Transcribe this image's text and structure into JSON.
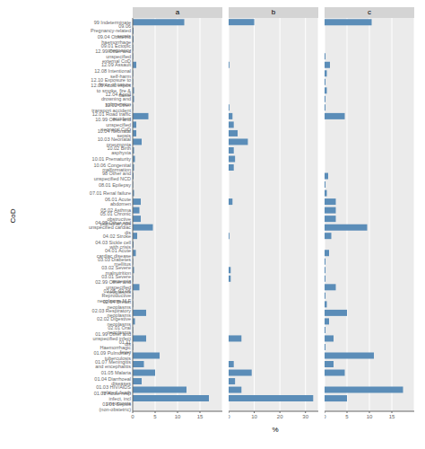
{
  "chart_data": [
    {
      "type": "bar",
      "title": "a",
      "orientation": "horizontal",
      "ylabel": "CoD",
      "color": "#5b8db8",
      "grid": true,
      "categories": [
        "99 Indeterminate",
        "09.06 Pregnancy-related sepsis",
        "09.04 Obstetric haemorrhage",
        "09.01 Ectopic pregnancy",
        "12.99 Other and unspecified external CoD",
        "12.09 Assault",
        "12.08 Intentional self-harm",
        "12.10 Exposure to force of nature",
        "12.05 Accid expos to smoke, fire & flame",
        "12.04 Accid drowning and submersion",
        "12.02 Other transport accident",
        "12.01 Road traffic accident",
        "10.99 Other and unspecified neonatal CoD",
        "10.04 Neonatal sepsis",
        "10.03 Neonatal pneumonia",
        "10.02 Birth asphyxia",
        "10.01 Prematurity",
        "10.06 Congenital malformation",
        "98 Other and unspecified NCD",
        "08.01 Epilepsy",
        "07.01 Renal failure",
        "06.01 Acute abdomen",
        "05.02 Asthma",
        "05.01 Chronic obstructive pulmonary dis",
        "04.99 Other and unspecified cardiac dis",
        "04.02 Stroke",
        "04.03 Sickle cell with crisis",
        "04.01 Acute cardiac disease",
        "03.03 Diabetes mellitus",
        "03.02 Severe malnutrition",
        "03.01 Severe anaemia",
        "02.99 Other and unspecified neoplasms",
        "02.05, 02.06 Reproductive neoplasms M,F",
        "02.04 Breast neoplasms",
        "02.03 Respiratory neoplasms",
        "02.02 Digestive neoplasms",
        "02.01 Oral neoplasms",
        "01.99 Other and unspecified infect dis",
        "01.11 Haemorrhagic fever",
        "01.09 Pulmonary tuberculosis",
        "01.07 Meningitis and encephalitis",
        "01.05 Malaria",
        "01.04 Diarrhoeal diseases",
        "01.03 HIV/AIDS related death",
        "01.02 Acute resp infect, incl pneumonia",
        "01.01 Sepsis (non-obstetric)"
      ],
      "values": [
        11.5,
        0.2,
        0.2,
        0.1,
        0.1,
        0.8,
        0.1,
        0.1,
        0.3,
        0.3,
        0.1,
        3.5,
        0.8,
        0.8,
        2.0,
        0.3,
        0.5,
        0.3,
        0.2,
        0.1,
        0.3,
        1.8,
        1.5,
        1.8,
        4.5,
        1.0,
        0.2,
        0.7,
        0.1,
        0.3,
        0.1,
        1.5,
        0.1,
        0.1,
        3.0,
        0.5,
        0.1,
        3.0,
        0.1,
        6.0,
        2.5,
        5.0,
        2.0,
        12.0,
        17.0,
        0.0
      ],
      "xlim": [
        0,
        20
      ],
      "xticks": [
        0,
        5,
        10,
        15
      ]
    },
    {
      "type": "bar",
      "title": "b",
      "orientation": "horizontal",
      "xlabel": "%",
      "color": "#5b8db8",
      "grid": true,
      "tick_labels": "x",
      "categories": [
        "99 Indeterminate",
        "09.06 Pregnancy-related sepsis",
        "09.04 Obstetric haemorrhage",
        "09.01 Ectopic pregnancy",
        "12.99 Other and unspecified external CoD",
        "12.09 Assault",
        "12.08 Intentional self-harm",
        "12.10 Exposure to force of nature",
        "12.05 Accid expos to smoke, fire & flame",
        "12.04 Accid drowning and submersion",
        "12.02 Other transport accident",
        "12.01 Road traffic accident",
        "10.99 Other and unspecified neonatal CoD",
        "10.04 Neonatal sepsis",
        "10.03 Neonatal pneumonia",
        "10.02 Birth asphyxia",
        "10.01 Prematurity",
        "10.06 Congenital malformation",
        "98 Other and unspecified NCD",
        "08.01 Epilepsy",
        "07.01 Renal failure",
        "06.01 Acute abdomen",
        "05.02 Asthma",
        "05.01 Chronic obstructive pulmonary dis",
        "04.99 Other and unspecified cardiac dis",
        "04.02 Stroke",
        "04.03 Sickle cell with crisis",
        "04.01 Acute cardiac disease",
        "03.03 Diabetes mellitus",
        "03.02 Severe malnutrition",
        "03.01 Severe anaemia",
        "02.99 Other and unspecified neoplasms",
        "02.05, 02.06 Reproductive neoplasms M,F",
        "02.04 Breast neoplasms",
        "02.03 Respiratory neoplasms",
        "02.02 Digestive neoplasms",
        "02.01 Oral neoplasms",
        "01.99 Other and unspecified infect dis",
        "01.11 Haemorrhagic fever",
        "01.09 Pulmonary tuberculosis",
        "01.07 Meningitis and encephalitis",
        "01.05 Malaria",
        "01.04 Diarrhoeal diseases",
        "01.03 HIV/AIDS related death",
        "01.02 Acute resp infect, incl pneumonia",
        "01.01 Sepsis (non-obstetric)"
      ],
      "values": [
        10.0,
        0.0,
        0.0,
        0.0,
        0.0,
        0.3,
        0.0,
        0.0,
        0.0,
        0.0,
        0.3,
        1.5,
        2.0,
        3.5,
        7.5,
        2.0,
        2.5,
        2.0,
        0.0,
        0.0,
        0.0,
        1.5,
        0.0,
        0.0,
        0.0,
        0.3,
        0.0,
        0.0,
        0.0,
        0.8,
        0.8,
        0.0,
        0.0,
        0.0,
        0.0,
        0.0,
        0.0,
        5.0,
        0.0,
        0.0,
        2.0,
        9.0,
        2.5,
        5.0,
        33.0,
        0.0
      ],
      "xlim": [
        0,
        35
      ],
      "xticks": [
        0,
        10,
        20,
        30
      ]
    },
    {
      "type": "bar",
      "title": "c",
      "orientation": "horizontal",
      "color": "#5b8db8",
      "grid": true,
      "tick_labels": "x",
      "categories": [
        "99 Indeterminate",
        "09.06 Pregnancy-related sepsis",
        "09.04 Obstetric haemorrhage",
        "09.01 Ectopic pregnancy",
        "12.99 Other and unspecified external CoD",
        "12.09 Assault",
        "12.08 Intentional self-harm",
        "12.10 Exposure to force of nature",
        "12.05 Accid expos to smoke, fire & flame",
        "12.04 Accid drowning and submersion",
        "12.02 Other transport accident",
        "12.01 Road traffic accident",
        "10.99 Other and unspecified neonatal CoD",
        "10.04 Neonatal sepsis",
        "10.03 Neonatal pneumonia",
        "10.02 Birth asphyxia",
        "10.01 Prematurity",
        "10.06 Congenital malformation",
        "98 Other and unspecified NCD",
        "08.01 Epilepsy",
        "07.01 Renal failure",
        "06.01 Acute abdomen",
        "05.02 Asthma",
        "05.01 Chronic obstructive pulmonary dis",
        "04.99 Other and unspecified cardiac dis",
        "04.02 Stroke",
        "04.03 Sickle cell with crisis",
        "04.01 Acute cardiac disease",
        "03.03 Diabetes mellitus",
        "03.02 Severe malnutrition",
        "03.01 Severe anaemia",
        "02.99 Other and unspecified neoplasms",
        "02.05, 02.06 Reproductive neoplasms M,F",
        "02.04 Breast neoplasms",
        "02.03 Respiratory neoplasms",
        "02.02 Digestive neoplasms",
        "02.01 Oral neoplasms",
        "01.99 Other and unspecified infect dis",
        "01.11 Haemorrhagic fever",
        "01.09 Pulmonary tuberculosis",
        "01.07 Meningitis and encephalitis",
        "01.05 Malaria",
        "01.04 Diarrhoeal diseases",
        "01.03 HIV/AIDS related death",
        "01.02 Acute resp infect, incl pneumonia",
        "01.01 Sepsis (non-obstetric)"
      ],
      "values": [
        10.5,
        0.0,
        0.0,
        0.0,
        0.2,
        1.2,
        0.5,
        0.2,
        0.5,
        0.2,
        0.2,
        4.5,
        0.0,
        0.0,
        0.0,
        0.0,
        0.0,
        0.0,
        0.8,
        0.2,
        0.5,
        2.5,
        2.5,
        2.5,
        9.5,
        1.5,
        0.0,
        1.0,
        0.2,
        0.2,
        0.2,
        2.5,
        0.2,
        0.5,
        5.0,
        1.0,
        0.2,
        2.0,
        0.2,
        11.0,
        2.0,
        4.5,
        0.0,
        17.5,
        5.0,
        0.0
      ],
      "xlim": [
        0,
        20
      ],
      "xticks": [
        0,
        5,
        10,
        15
      ]
    }
  ]
}
